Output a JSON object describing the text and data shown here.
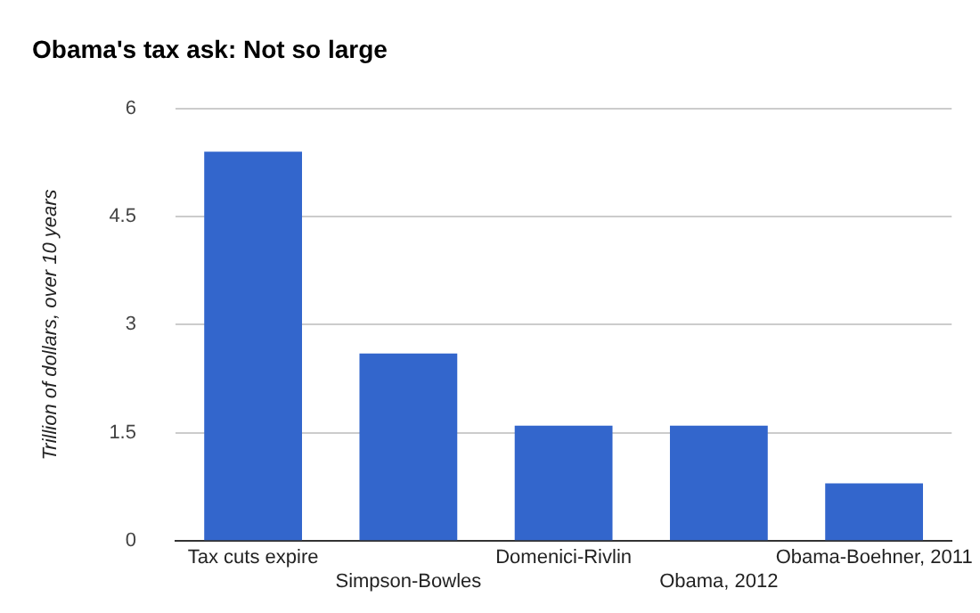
{
  "chart_data": {
    "type": "bar",
    "title": "Obama's tax ask: Not so large",
    "ylabel": "Trillion of dollars, over 10 years",
    "categories": [
      "Tax cuts expire",
      "Simpson-Bowles",
      "Domenici-Rivlin",
      "Obama, 2012",
      "Obama-Boehner, 2011"
    ],
    "values": [
      5.4,
      2.6,
      1.6,
      1.6,
      0.8
    ],
    "color": "#3366cc",
    "ylim": [
      0,
      6
    ],
    "yticks": [
      0,
      1.5,
      3,
      4.5,
      6
    ],
    "grid": "y",
    "legend": false
  }
}
